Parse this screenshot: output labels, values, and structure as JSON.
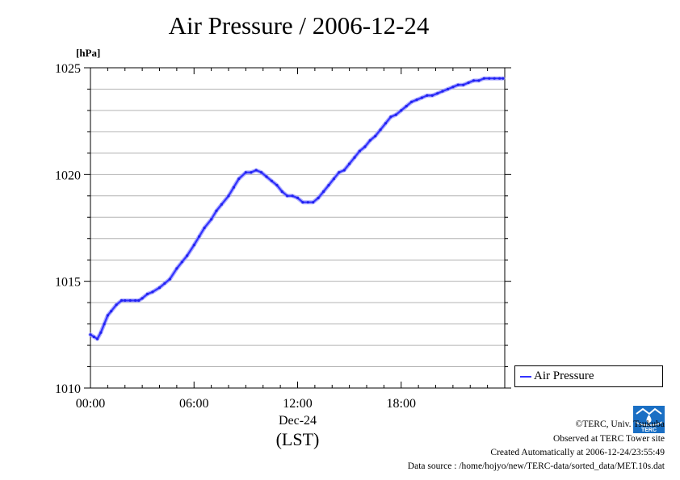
{
  "chart_data": {
    "type": "line",
    "title": "Air Pressure / 2006-12-24",
    "ylabel": "[hPa]",
    "ylim": [
      1010,
      1025
    ],
    "yticks": [
      1010,
      1015,
      1020,
      1025
    ],
    "ytick_labels": [
      "1010",
      "1015",
      "1020",
      "1025"
    ],
    "xlim": [
      0,
      24
    ],
    "xticks": [
      0,
      6,
      12,
      18
    ],
    "xtick_labels": [
      "00:00",
      "06:00",
      "12:00",
      "18:00"
    ],
    "xlabel_date": "Dec-24",
    "xlabel_unit": "(LST)",
    "grid": true,
    "legend_position": "right",
    "series": [
      {
        "name": "Air Pressure",
        "color": "#3333ff",
        "x": [
          0,
          0.2,
          0.4,
          0.6,
          0.8,
          1.0,
          1.2,
          1.5,
          1.8,
          2.0,
          2.3,
          2.6,
          2.8,
          3.0,
          3.3,
          3.6,
          4.0,
          4.3,
          4.6,
          5.0,
          5.3,
          5.6,
          6.0,
          6.3,
          6.6,
          7.0,
          7.3,
          7.6,
          8.0,
          8.3,
          8.6,
          9.0,
          9.3,
          9.6,
          9.9,
          10.2,
          10.5,
          10.8,
          11.1,
          11.4,
          11.7,
          12.0,
          12.3,
          12.6,
          12.9,
          13.2,
          13.5,
          13.8,
          14.1,
          14.4,
          14.7,
          15.0,
          15.3,
          15.6,
          15.9,
          16.2,
          16.5,
          16.8,
          17.1,
          17.4,
          17.7,
          18.0,
          18.3,
          18.6,
          18.9,
          19.2,
          19.5,
          19.8,
          20.1,
          20.4,
          20.7,
          21.0,
          21.3,
          21.6,
          21.9,
          22.2,
          22.5,
          22.8,
          23.1,
          23.4,
          23.7,
          23.9
        ],
        "y": [
          1012.5,
          1012.4,
          1012.3,
          1012.6,
          1013.0,
          1013.4,
          1013.6,
          1013.9,
          1014.1,
          1014.1,
          1014.1,
          1014.1,
          1014.1,
          1014.2,
          1014.4,
          1014.5,
          1014.7,
          1014.9,
          1015.1,
          1015.6,
          1015.9,
          1016.2,
          1016.7,
          1017.1,
          1017.5,
          1017.9,
          1018.3,
          1018.6,
          1019.0,
          1019.4,
          1019.8,
          1020.1,
          1020.1,
          1020.2,
          1020.1,
          1019.9,
          1019.7,
          1019.5,
          1019.2,
          1019.0,
          1019.0,
          1018.9,
          1018.7,
          1018.7,
          1018.7,
          1018.9,
          1019.2,
          1019.5,
          1019.8,
          1020.1,
          1020.2,
          1020.5,
          1020.8,
          1021.1,
          1021.3,
          1021.6,
          1021.8,
          1022.1,
          1022.4,
          1022.7,
          1022.8,
          1023.0,
          1023.2,
          1023.4,
          1023.5,
          1023.6,
          1023.7,
          1023.7,
          1023.8,
          1023.9,
          1024.0,
          1024.1,
          1024.2,
          1024.2,
          1024.3,
          1024.4,
          1024.4,
          1024.5,
          1024.5,
          1024.5,
          1024.5,
          1024.5
        ]
      }
    ]
  },
  "legend": {
    "label": "Air Pressure"
  },
  "footer": {
    "copyright": "©TERC, Univ. Tsukuba",
    "site": "Observed at TERC Tower site",
    "created": "Created Automatically at 2006-12-24/23:55:49",
    "source": "Data source : /home/hojyo/new/TERC-data/sorted_data/MET.10s.dat"
  },
  "logo": {
    "text": "TERC",
    "color": "#1a6fc4"
  }
}
